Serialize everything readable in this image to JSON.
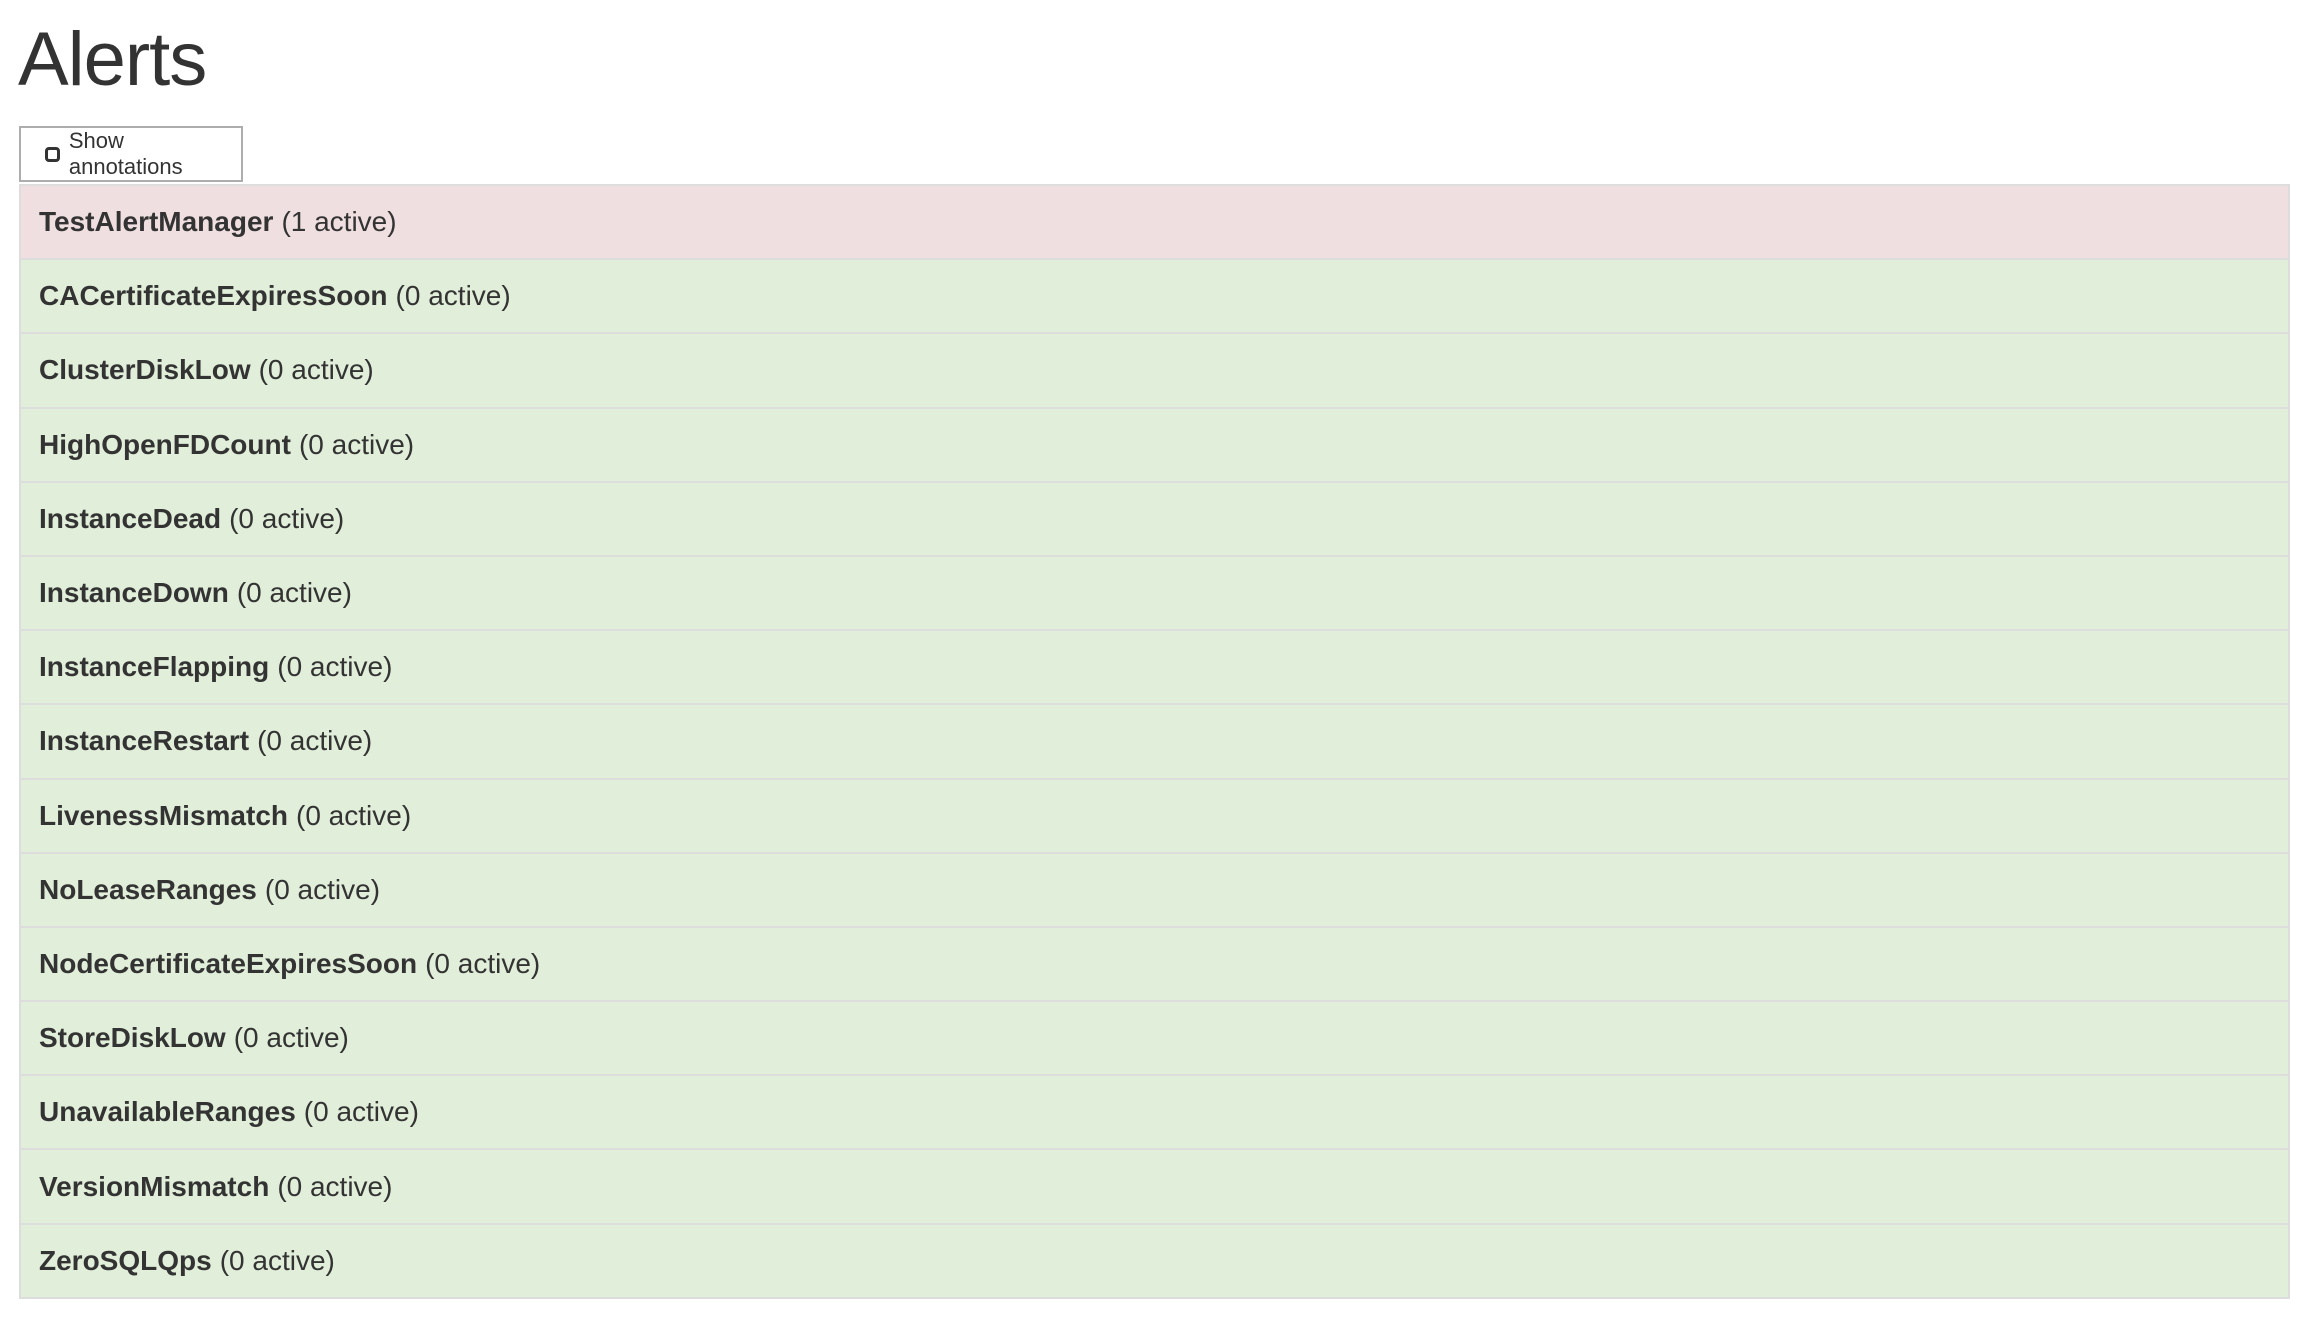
{
  "page": {
    "title": "Alerts"
  },
  "toolbar": {
    "show_annotations_label": "Show annotations",
    "show_annotations_checked": false
  },
  "colors": {
    "firing": "#efdfe0",
    "inactive": "#e1eed9",
    "border": "#dddddd",
    "text": "#333333"
  },
  "alerts": [
    {
      "name": "TestAlertManager",
      "count": "(1 active)",
      "state": "firing"
    },
    {
      "name": "CACertificateExpiresSoon",
      "count": "(0 active)",
      "state": "ok"
    },
    {
      "name": "ClusterDiskLow",
      "count": "(0 active)",
      "state": "ok"
    },
    {
      "name": "HighOpenFDCount",
      "count": "(0 active)",
      "state": "ok"
    },
    {
      "name": "InstanceDead",
      "count": "(0 active)",
      "state": "ok"
    },
    {
      "name": "InstanceDown",
      "count": "(0 active)",
      "state": "ok"
    },
    {
      "name": "InstanceFlapping",
      "count": "(0 active)",
      "state": "ok"
    },
    {
      "name": "InstanceRestart",
      "count": "(0 active)",
      "state": "ok"
    },
    {
      "name": "LivenessMismatch",
      "count": "(0 active)",
      "state": "ok"
    },
    {
      "name": "NoLeaseRanges",
      "count": "(0 active)",
      "state": "ok"
    },
    {
      "name": "NodeCertificateExpiresSoon",
      "count": "(0 active)",
      "state": "ok"
    },
    {
      "name": "StoreDiskLow",
      "count": "(0 active)",
      "state": "ok"
    },
    {
      "name": "UnavailableRanges",
      "count": "(0 active)",
      "state": "ok"
    },
    {
      "name": "VersionMismatch",
      "count": "(0 active)",
      "state": "ok"
    },
    {
      "name": "ZeroSQLQps",
      "count": "(0 active)",
      "state": "ok"
    }
  ]
}
